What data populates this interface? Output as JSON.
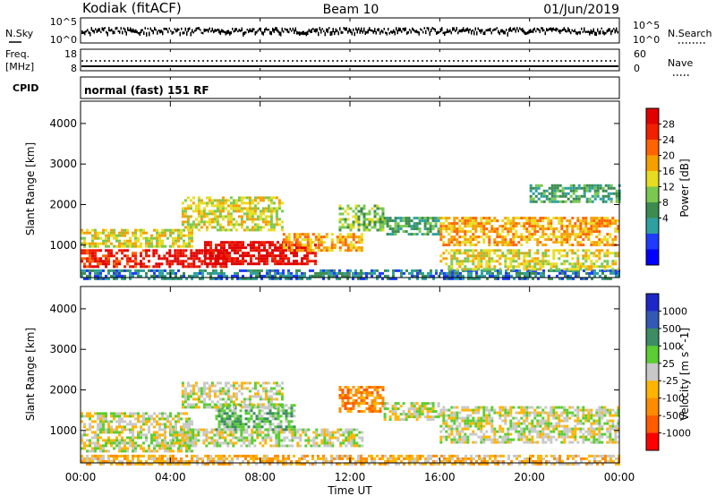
{
  "header": {
    "station": "Kodiak (fitACF)",
    "beam": "Beam 10",
    "date": "01/Jun/2019"
  },
  "top_panels": {
    "nsky_label": "N.Sky",
    "nsky_ticks": [
      "10^5",
      "10^0"
    ],
    "nsearch_label": "N.Search",
    "nsearch_ticks": [
      "10^5",
      "10^0"
    ],
    "freq_label": "Freq.",
    "freq_unit": "[MHz]",
    "freq_ticks": [
      "18",
      "8"
    ],
    "nave_label": "Nave",
    "nave_ticks": [
      "60",
      "0"
    ],
    "cpid_label": "CPID",
    "cpid_text": "normal (fast) 151 RF"
  },
  "x_axis": {
    "title": "Time UT",
    "ticks": [
      "00:00",
      "04:00",
      "08:00",
      "12:00",
      "16:00",
      "20:00",
      "00:00"
    ]
  },
  "chart_data": [
    {
      "type": "heatmap",
      "name": "power",
      "ylabel": "Slant Range [km]",
      "yticks": [
        "1000",
        "2000",
        "3000",
        "4000"
      ],
      "ylim": [
        200,
        4550
      ],
      "xlim": [
        0,
        24
      ],
      "colorbar": {
        "label": "Power [dB]",
        "ticks": [
          "4",
          "8",
          "12",
          "16",
          "20",
          "24",
          "28"
        ],
        "colors": [
          "#0000ff",
          "#1e3cff",
          "#2fa0a0",
          "#3c8c50",
          "#7bc850",
          "#e8dc20",
          "#f5a000",
          "#ff6400",
          "#f02000",
          "#e00000"
        ]
      },
      "regions": [
        {
          "t0": 0.0,
          "t1": 24.0,
          "r0": 200,
          "r1": 400,
          "level": 2
        },
        {
          "t0": 0.0,
          "t1": 3.0,
          "r0": 500,
          "r1": 900,
          "level": 8
        },
        {
          "t0": 0.0,
          "t1": 5.0,
          "r0": 1000,
          "r1": 1400,
          "level": 5
        },
        {
          "t0": 3.2,
          "t1": 6.5,
          "r0": 450,
          "r1": 900,
          "level": 9
        },
        {
          "t0": 5.5,
          "t1": 10.5,
          "r0": 550,
          "r1": 1100,
          "level": 9
        },
        {
          "t0": 4.5,
          "t1": 9.0,
          "r0": 1400,
          "r1": 2200,
          "level": 5
        },
        {
          "t0": 9.0,
          "t1": 12.5,
          "r0": 900,
          "r1": 1300,
          "level": 6
        },
        {
          "t0": 11.5,
          "t1": 13.5,
          "r0": 1400,
          "r1": 2000,
          "level": 4
        },
        {
          "t0": 13.5,
          "t1": 16.0,
          "r0": 1300,
          "r1": 1700,
          "level": 3
        },
        {
          "t0": 16.0,
          "t1": 24.0,
          "r0": 1000,
          "r1": 1700,
          "level": 6
        },
        {
          "t0": 16.0,
          "t1": 24.0,
          "r0": 400,
          "r1": 900,
          "level": 5
        },
        {
          "t0": 20.0,
          "t1": 24.0,
          "r0": 2100,
          "r1": 2500,
          "level": 3
        }
      ]
    },
    {
      "type": "heatmap",
      "name": "velocity",
      "ylabel": "Slant Range [km]",
      "yticks": [
        "1000",
        "2000",
        "3000",
        "4000"
      ],
      "ylim": [
        200,
        4550
      ],
      "xlim": [
        0,
        24
      ],
      "colorbar": {
        "label": "Velocity [m s^-1]",
        "ticks": [
          "1000",
          "500",
          "100",
          "25",
          "-25",
          "-100",
          "-500",
          "-1000"
        ],
        "colors": [
          "#1e28c8",
          "#325ab4",
          "#3c8c64",
          "#5acd32",
          "#c8c8c8",
          "#ffb400",
          "#ff8c00",
          "#ff5a00",
          "#ff0000"
        ]
      },
      "regions": [
        {
          "t0": 0.0,
          "t1": 24.0,
          "r0": 200,
          "r1": 400,
          "level": 5
        },
        {
          "t0": 0.0,
          "t1": 5.0,
          "r0": 500,
          "r1": 1450,
          "level": 4
        },
        {
          "t0": 4.0,
          "t1": 12.5,
          "r0": 600,
          "r1": 1050,
          "level": 4
        },
        {
          "t0": 6.0,
          "t1": 9.5,
          "r0": 1050,
          "r1": 1650,
          "level": 3
        },
        {
          "t0": 4.5,
          "t1": 9.0,
          "r0": 1600,
          "r1": 2200,
          "level": 4
        },
        {
          "t0": 11.5,
          "t1": 13.5,
          "r0": 1500,
          "r1": 2100,
          "level": 6
        },
        {
          "t0": 16.0,
          "t1": 24.0,
          "r0": 700,
          "r1": 1600,
          "level": 4
        },
        {
          "t0": 13.5,
          "t1": 16.0,
          "r0": 1300,
          "r1": 1700,
          "level": 4
        }
      ]
    }
  ]
}
